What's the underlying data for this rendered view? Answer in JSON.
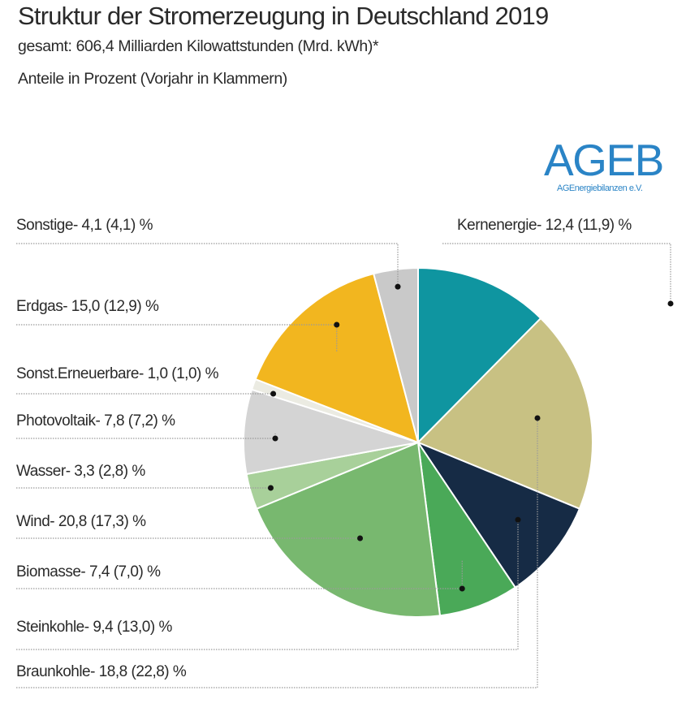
{
  "title": "Struktur  der Stromerzeugung in Deutschland 2019",
  "subtitle_1": "gesamt: 606,4 Milliarden Kilowattstunden (Mrd. kWh)*",
  "subtitle_2": "Anteile in Prozent (Vorjahr in Klammern)",
  "logo": {
    "text": "AGEB",
    "subtext": "AGEnergiebilanzen e.V."
  },
  "colors": {
    "logo": "#2a84c6"
  },
  "chart_data": {
    "type": "pie",
    "unit": "%",
    "start": "12 o'clock, clockwise",
    "slices": [
      {
        "name": "Kernenergie",
        "value": 12.4,
        "prev": 11.9,
        "label": "Kernenergie- 12,4  (11,9) %",
        "color": "#0f95a0"
      },
      {
        "name": "Braunkohle",
        "value": 18.8,
        "prev": 22.8,
        "label": "Braunkohle- 18,8  (22,8) %",
        "color": "#c8c183"
      },
      {
        "name": "Steinkohle",
        "value": 9.4,
        "prev": 13.0,
        "label": "Steinkohle- 9,4  (13,0) %",
        "color": "#162b45"
      },
      {
        "name": "Biomasse",
        "value": 7.4,
        "prev": 7.0,
        "label": "Biomasse- 7,4  (7,0) %",
        "color": "#4aa958"
      },
      {
        "name": "Wind",
        "value": 20.8,
        "prev": 17.3,
        "label": "Wind- 20,8  (17,3) %",
        "color": "#78b86f"
      },
      {
        "name": "Wasser",
        "value": 3.3,
        "prev": 2.8,
        "label": "Wasser- 3,3  (2,8) %",
        "color": "#a8d09a"
      },
      {
        "name": "Photovoltaik",
        "value": 7.8,
        "prev": 7.2,
        "label": "Photovoltaik- 7,8  (7,2) %",
        "color": "#d4d4d4"
      },
      {
        "name": "Sonst.Erneuerbare",
        "value": 1.0,
        "prev": 1.0,
        "label": "Sonst.Erneuerbare- 1,0  (1,0) %",
        "color": "#ebebe2"
      },
      {
        "name": "Erdgas",
        "value": 15.0,
        "prev": 12.9,
        "label": "Erdgas- 15,0  (12,9) %",
        "color": "#f2b61f"
      },
      {
        "name": "Sonstige",
        "value": 4.1,
        "prev": 4.1,
        "label": "Sonstige- 4,1  (4,1) %",
        "color": "#c9c9c9"
      }
    ]
  }
}
